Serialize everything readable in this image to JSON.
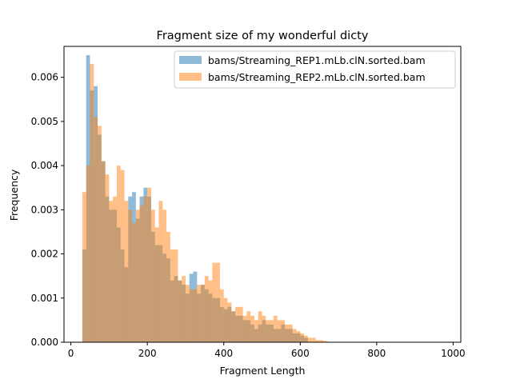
{
  "chart_data": {
    "type": "bar",
    "title": "Fragment size of my wonderful dicty",
    "xlabel": "Fragment Length",
    "ylabel": "Frequency",
    "xlim": [
      -18,
      1020
    ],
    "ylim": [
      0,
      0.0067
    ],
    "xticks": [
      0,
      200,
      400,
      600,
      800,
      1000
    ],
    "yticks": [
      0.0,
      0.001,
      0.002,
      0.003,
      0.004,
      0.005,
      0.006
    ],
    "ytick_labels": [
      "0.000",
      "0.001",
      "0.002",
      "0.003",
      "0.004",
      "0.005",
      "0.006"
    ],
    "grid": false,
    "legend_position": "top-right",
    "bin_width": 10,
    "series": [
      {
        "name": "bams/Streaming_REP1.mLb.clN.sorted.bam",
        "color": "#1f77b4",
        "alpha": 0.5,
        "bins": [
          [
            30,
            0.0021
          ],
          [
            40,
            0.0065
          ],
          [
            50,
            0.0057
          ],
          [
            60,
            0.0058
          ],
          [
            70,
            0.0047
          ],
          [
            80,
            0.0041
          ],
          [
            90,
            0.0033
          ],
          [
            100,
            0.003
          ],
          [
            110,
            0.003
          ],
          [
            120,
            0.0026
          ],
          [
            130,
            0.0021
          ],
          [
            140,
            0.0017
          ],
          [
            150,
            0.0033
          ],
          [
            160,
            0.0034
          ],
          [
            170,
            0.0028
          ],
          [
            180,
            0.0033
          ],
          [
            190,
            0.0035
          ],
          [
            200,
            0.0033
          ],
          [
            210,
            0.0025
          ],
          [
            220,
            0.0022
          ],
          [
            230,
            0.0022
          ],
          [
            240,
            0.002
          ],
          [
            250,
            0.0019
          ],
          [
            260,
            0.0014
          ],
          [
            270,
            0.0015
          ],
          [
            280,
            0.0014
          ],
          [
            290,
            0.0013
          ],
          [
            300,
            0.0011
          ],
          [
            310,
            0.00155
          ],
          [
            320,
            0.0016
          ],
          [
            330,
            0.0011
          ],
          [
            340,
            0.0013
          ],
          [
            350,
            0.0012
          ],
          [
            360,
            0.0011
          ],
          [
            370,
            0.001
          ],
          [
            380,
            0.001
          ],
          [
            390,
            0.0008
          ],
          [
            400,
            0.00075
          ],
          [
            410,
            0.0008
          ],
          [
            420,
            0.0007
          ],
          [
            430,
            0.0006
          ],
          [
            440,
            0.0006
          ],
          [
            450,
            0.0005
          ],
          [
            460,
            0.0005
          ],
          [
            470,
            0.0004
          ],
          [
            480,
            0.0003
          ],
          [
            490,
            0.0004
          ],
          [
            500,
            0.0005
          ],
          [
            510,
            0.0004
          ],
          [
            520,
            0.0004
          ],
          [
            530,
            0.0003
          ],
          [
            540,
            0.0003
          ],
          [
            550,
            0.0004
          ],
          [
            560,
            0.0003
          ],
          [
            570,
            0.0003
          ],
          [
            580,
            0.0002
          ],
          [
            590,
            0.0002
          ],
          [
            600,
            0.00015
          ],
          [
            610,
            0.0001
          ]
        ]
      },
      {
        "name": "bams/Streaming_REP2.mLb.clN.sorted.bam",
        "color": "#ff7f0e",
        "alpha": 0.5,
        "bins": [
          [
            30,
            0.0034
          ],
          [
            40,
            0.004
          ],
          [
            50,
            0.0063
          ],
          [
            60,
            0.0051
          ],
          [
            70,
            0.0049
          ],
          [
            80,
            0.0041
          ],
          [
            90,
            0.0038
          ],
          [
            100,
            0.0032
          ],
          [
            110,
            0.0033
          ],
          [
            120,
            0.004
          ],
          [
            130,
            0.0039
          ],
          [
            140,
            0.0032
          ],
          [
            150,
            0.003
          ],
          [
            160,
            0.0027
          ],
          [
            170,
            0.003
          ],
          [
            180,
            0.0031
          ],
          [
            190,
            0.0033
          ],
          [
            200,
            0.0035
          ],
          [
            210,
            0.003
          ],
          [
            220,
            0.0026
          ],
          [
            230,
            0.0032
          ],
          [
            240,
            0.003
          ],
          [
            250,
            0.0025
          ],
          [
            260,
            0.0021
          ],
          [
            270,
            0.0021
          ],
          [
            280,
            0.0014
          ],
          [
            290,
            0.0015
          ],
          [
            300,
            0.0013
          ],
          [
            310,
            0.0012
          ],
          [
            320,
            0.0012
          ],
          [
            330,
            0.0013
          ],
          [
            340,
            0.0013
          ],
          [
            350,
            0.0015
          ],
          [
            360,
            0.0014
          ],
          [
            370,
            0.0018
          ],
          [
            380,
            0.0018
          ],
          [
            390,
            0.0012
          ],
          [
            400,
            0.001
          ],
          [
            410,
            0.0009
          ],
          [
            420,
            0.0007
          ],
          [
            430,
            0.0008
          ],
          [
            440,
            0.0008
          ],
          [
            450,
            0.0006
          ],
          [
            460,
            0.0007
          ],
          [
            470,
            0.0006
          ],
          [
            480,
            0.0005
          ],
          [
            490,
            0.0007
          ],
          [
            500,
            0.0006
          ],
          [
            510,
            0.0005
          ],
          [
            520,
            0.0005
          ],
          [
            530,
            0.0006
          ],
          [
            540,
            0.0005
          ],
          [
            550,
            0.0005
          ],
          [
            560,
            0.0004
          ],
          [
            570,
            0.0004
          ],
          [
            580,
            0.0003
          ],
          [
            590,
            0.00025
          ],
          [
            600,
            0.0002
          ],
          [
            610,
            0.00015
          ],
          [
            620,
            0.0001
          ],
          [
            630,
            0.0001
          ],
          [
            640,
            5e-05
          ],
          [
            650,
            5e-05
          ],
          [
            660,
            3e-05
          ]
        ]
      }
    ]
  }
}
